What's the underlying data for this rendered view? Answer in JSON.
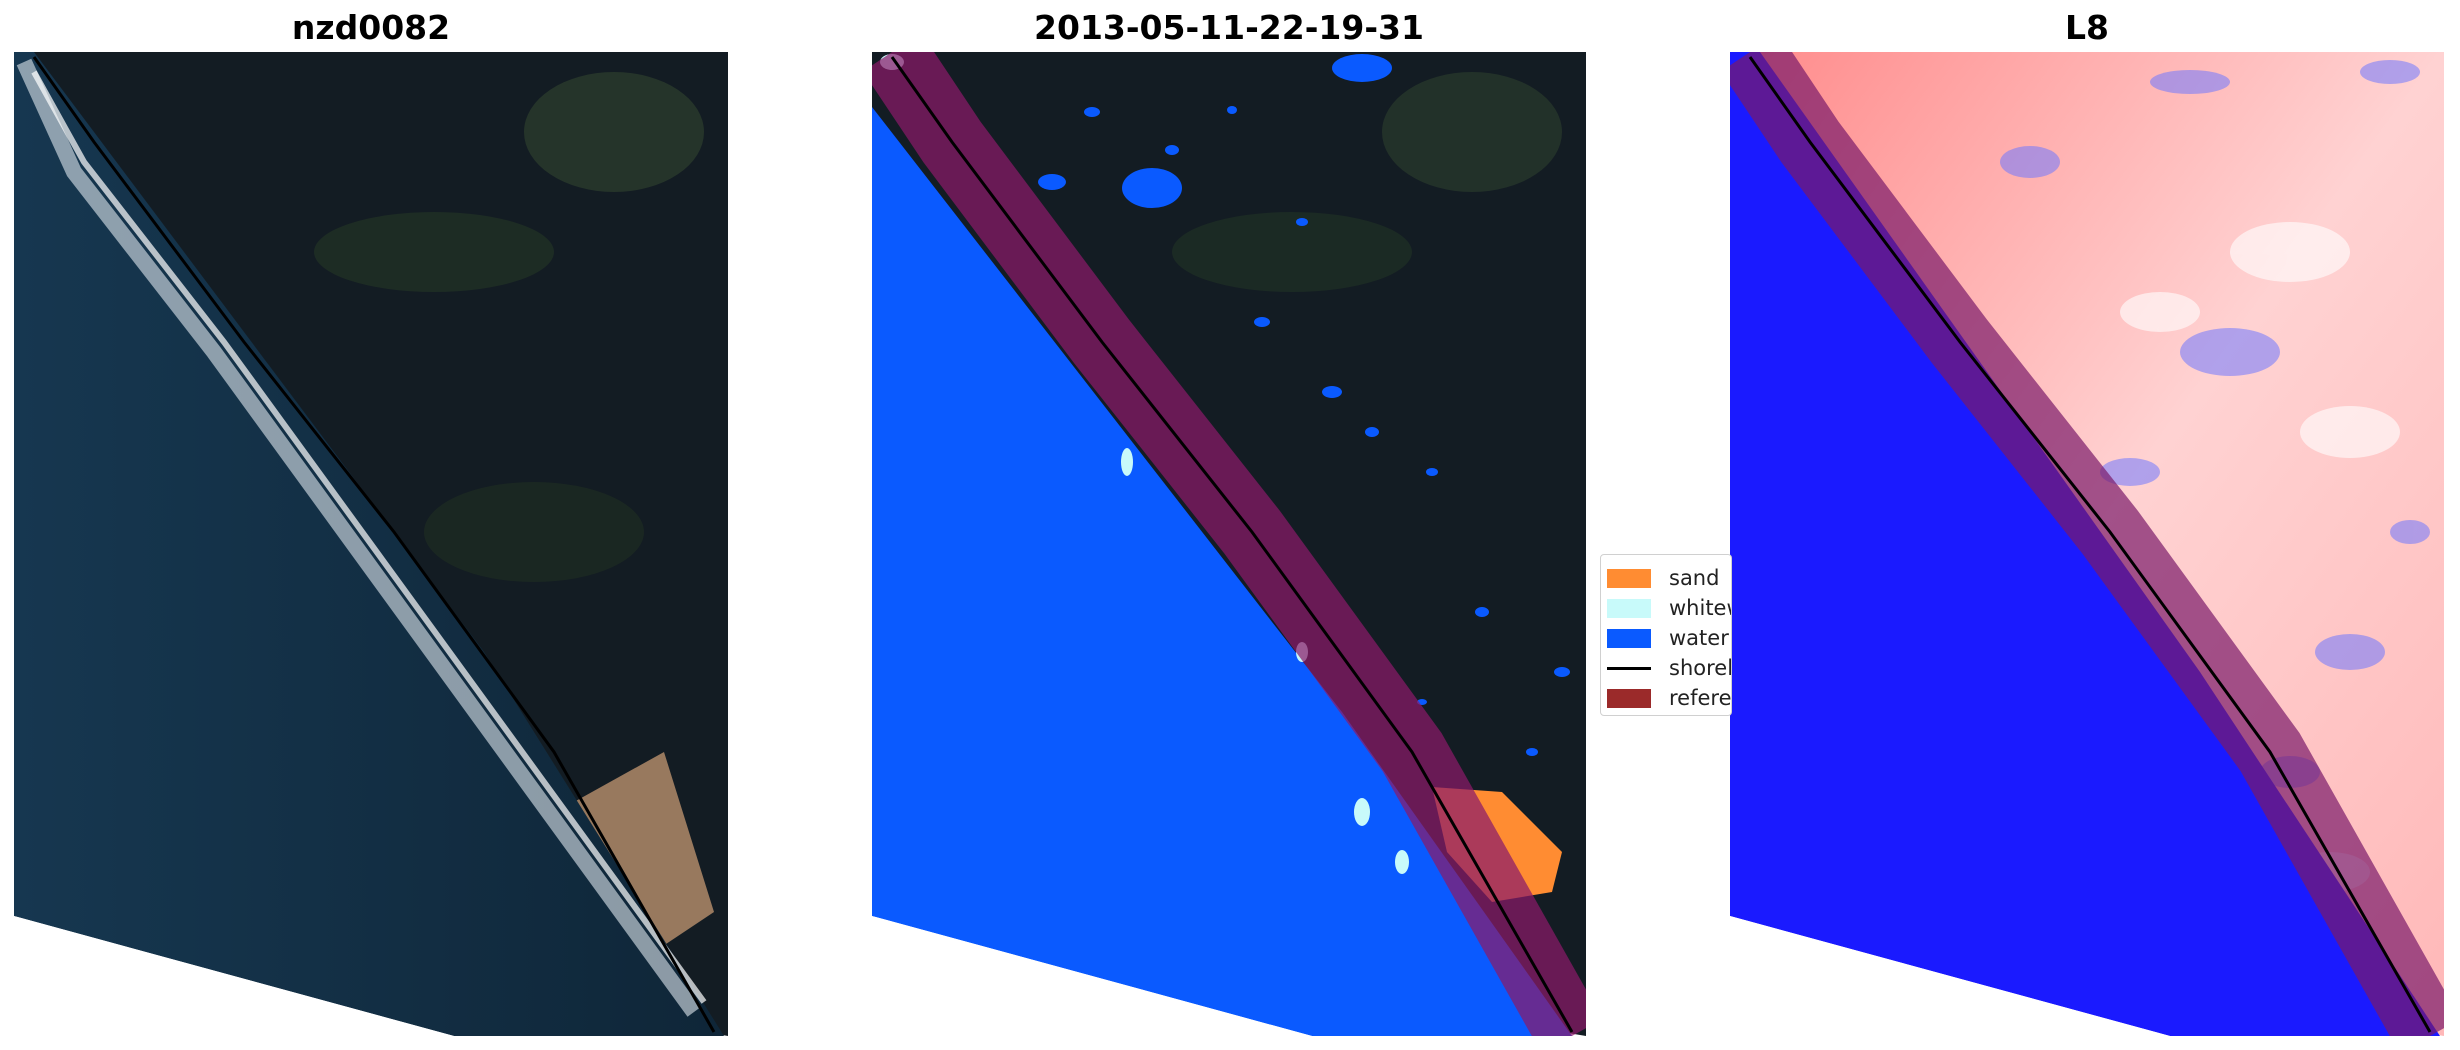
{
  "panels": [
    {
      "title": "nzd0082"
    },
    {
      "title": "2013-05-11-22-19-31"
    },
    {
      "title": "L8"
    }
  ],
  "legend": {
    "items": [
      {
        "label": "sand",
        "color": "#ff8c32",
        "kind": "patch"
      },
      {
        "label": "whitewater",
        "color": "#c8fafa",
        "kind": "patch"
      },
      {
        "label": "water",
        "color": "#0a5aff",
        "kind": "patch"
      },
      {
        "label": "shoreline",
        "color": "#000000",
        "kind": "line"
      },
      {
        "label": "reference",
        "color": "#9b2a2a",
        "kind": "patch"
      }
    ]
  },
  "colors": {
    "ocean": "#16324a",
    "land": "#131c23",
    "water_class": "#0a5aff",
    "reference_band": "#8b1a4a",
    "index_water": "#1a1aff",
    "index_land": "#ff9a9a"
  }
}
